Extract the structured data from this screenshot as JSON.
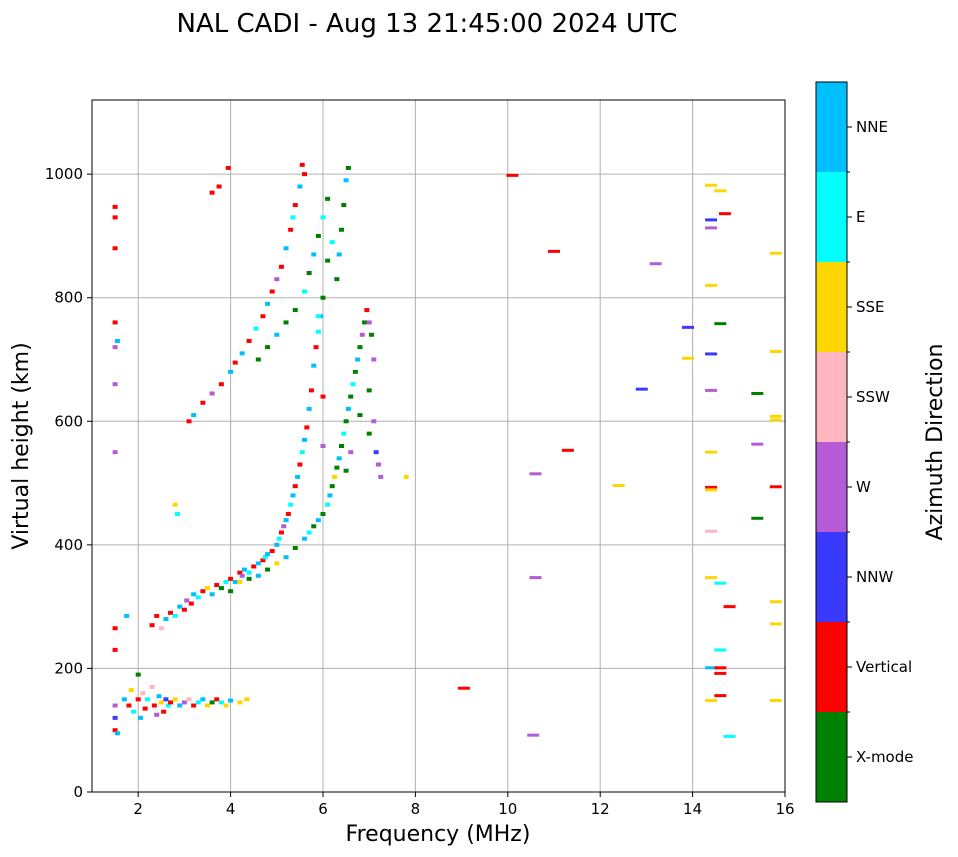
{
  "chart_data": {
    "type": "scatter",
    "title": "NAL CADI - Aug 13 21:45:00 2024 UTC",
    "xlabel": "Frequency (MHz)",
    "ylabel": "Virtual height (km)",
    "xlim": [
      1,
      16
    ],
    "ylim": [
      0,
      1120
    ],
    "xticks": [
      "2",
      "4",
      "6",
      "8",
      "10",
      "12",
      "14",
      "16"
    ],
    "yticks": [
      "0",
      "200",
      "400",
      "600",
      "800",
      "1000"
    ],
    "grid": true,
    "colorbar": {
      "label": "Azimuth Direction",
      "categories": [
        {
          "name": "X-mode",
          "color": "#008000"
        },
        {
          "name": "Vertical",
          "color": "#ff0000"
        },
        {
          "name": "NNW",
          "color": "#3a3aff"
        },
        {
          "name": "W",
          "color": "#b65bd6"
        },
        {
          "name": "SSW",
          "color": "#ffb6c1"
        },
        {
          "name": "SSE",
          "color": "#ffd700"
        },
        {
          "name": "E",
          "color": "#00ffff"
        },
        {
          "name": "NNE",
          "color": "#00bfff"
        }
      ]
    },
    "points": [
      [
        1.5,
        100,
        "Vertical"
      ],
      [
        1.5,
        120,
        "NNW"
      ],
      [
        1.55,
        95,
        "NNE"
      ],
      [
        1.5,
        140,
        "W"
      ],
      [
        1.5,
        230,
        "Vertical"
      ],
      [
        1.5,
        265,
        "Vertical"
      ],
      [
        1.5,
        550,
        "W"
      ],
      [
        1.5,
        660,
        "W"
      ],
      [
        1.5,
        720,
        "W"
      ],
      [
        1.55,
        730,
        "NNE"
      ],
      [
        1.5,
        760,
        "Vertical"
      ],
      [
        1.5,
        880,
        "Vertical"
      ],
      [
        1.5,
        930,
        "Vertical"
      ],
      [
        1.5,
        947,
        "Vertical"
      ],
      [
        1.75,
        285,
        "NNE"
      ],
      [
        1.7,
        150,
        "NNE"
      ],
      [
        1.8,
        140,
        "Vertical"
      ],
      [
        1.85,
        165,
        "SSE"
      ],
      [
        1.9,
        130,
        "E"
      ],
      [
        2.0,
        190,
        "X-mode"
      ],
      [
        2.0,
        150,
        "Vertical"
      ],
      [
        2.05,
        120,
        "NNE"
      ],
      [
        2.1,
        160,
        "SSW"
      ],
      [
        2.15,
        135,
        "Vertical"
      ],
      [
        2.2,
        150,
        "E"
      ],
      [
        2.3,
        170,
        "SSW"
      ],
      [
        2.35,
        140,
        "Vertical"
      ],
      [
        2.4,
        125,
        "W"
      ],
      [
        2.45,
        155,
        "NNE"
      ],
      [
        2.5,
        145,
        "SSE"
      ],
      [
        2.55,
        130,
        "Vertical"
      ],
      [
        2.6,
        150,
        "NNW"
      ],
      [
        2.65,
        140,
        "E"
      ],
      [
        2.7,
        145,
        "Vertical"
      ],
      [
        2.8,
        150,
        "SSE"
      ],
      [
        2.9,
        140,
        "NNE"
      ],
      [
        3.0,
        145,
        "W"
      ],
      [
        3.1,
        150,
        "SSW"
      ],
      [
        3.2,
        140,
        "Vertical"
      ],
      [
        3.3,
        145,
        "E"
      ],
      [
        3.4,
        150,
        "NNE"
      ],
      [
        3.5,
        140,
        "SSE"
      ],
      [
        3.6,
        145,
        "X-mode"
      ],
      [
        3.7,
        150,
        "Vertical"
      ],
      [
        3.8,
        145,
        "E"
      ],
      [
        3.9,
        140,
        "SSE"
      ],
      [
        4.0,
        148,
        "NNE"
      ],
      [
        4.2,
        145,
        "SSE"
      ],
      [
        4.35,
        150,
        "SSE"
      ],
      [
        2.3,
        270,
        "Vertical"
      ],
      [
        2.4,
        285,
        "Vertical"
      ],
      [
        2.5,
        265,
        "SSW"
      ],
      [
        2.6,
        280,
        "NNE"
      ],
      [
        2.7,
        290,
        "Vertical"
      ],
      [
        2.8,
        285,
        "E"
      ],
      [
        2.9,
        300,
        "NNE"
      ],
      [
        3.0,
        295,
        "Vertical"
      ],
      [
        3.05,
        310,
        "W"
      ],
      [
        3.15,
        305,
        "Vertical"
      ],
      [
        3.2,
        320,
        "NNE"
      ],
      [
        3.3,
        315,
        "E"
      ],
      [
        3.4,
        325,
        "Vertical"
      ],
      [
        3.5,
        330,
        "SSE"
      ],
      [
        3.6,
        320,
        "NNE"
      ],
      [
        3.7,
        335,
        "Vertical"
      ],
      [
        3.8,
        330,
        "NNE"
      ],
      [
        3.9,
        340,
        "E"
      ],
      [
        4.0,
        345,
        "Vertical"
      ],
      [
        4.1,
        340,
        "NNE"
      ],
      [
        4.2,
        355,
        "Vertical"
      ],
      [
        4.25,
        350,
        "W"
      ],
      [
        4.3,
        360,
        "NNE"
      ],
      [
        4.4,
        355,
        "E"
      ],
      [
        4.5,
        365,
        "Vertical"
      ],
      [
        4.6,
        370,
        "NNE"
      ],
      [
        4.7,
        375,
        "Vertical"
      ],
      [
        4.75,
        380,
        "E"
      ],
      [
        4.8,
        385,
        "NNE"
      ],
      [
        4.9,
        390,
        "Vertical"
      ],
      [
        5.0,
        400,
        "NNE"
      ],
      [
        5.05,
        410,
        "E"
      ],
      [
        5.1,
        420,
        "Vertical"
      ],
      [
        5.15,
        430,
        "W"
      ],
      [
        5.2,
        440,
        "NNE"
      ],
      [
        5.25,
        450,
        "Vertical"
      ],
      [
        5.3,
        465,
        "E"
      ],
      [
        5.35,
        480,
        "NNE"
      ],
      [
        5.4,
        495,
        "Vertical"
      ],
      [
        5.45,
        510,
        "NNE"
      ],
      [
        5.5,
        530,
        "Vertical"
      ],
      [
        5.55,
        550,
        "E"
      ],
      [
        5.6,
        570,
        "NNE"
      ],
      [
        5.65,
        590,
        "Vertical"
      ],
      [
        5.7,
        620,
        "NNE"
      ],
      [
        5.75,
        650,
        "Vertical"
      ],
      [
        5.8,
        690,
        "NNE"
      ],
      [
        5.85,
        720,
        "Vertical"
      ],
      [
        5.9,
        745,
        "E"
      ],
      [
        5.95,
        770,
        "NNE"
      ],
      [
        6.0,
        640,
        "Vertical"
      ],
      [
        6.0,
        560,
        "W"
      ],
      [
        3.8,
        330,
        "X-mode"
      ],
      [
        4.0,
        325,
        "X-mode"
      ],
      [
        4.2,
        340,
        "SSE"
      ],
      [
        4.4,
        345,
        "X-mode"
      ],
      [
        4.6,
        350,
        "NNE"
      ],
      [
        4.8,
        360,
        "X-mode"
      ],
      [
        5.0,
        370,
        "SSE"
      ],
      [
        5.2,
        380,
        "NNE"
      ],
      [
        5.4,
        395,
        "X-mode"
      ],
      [
        5.6,
        410,
        "NNE"
      ],
      [
        5.7,
        420,
        "E"
      ],
      [
        5.8,
        430,
        "X-mode"
      ],
      [
        5.9,
        440,
        "NNE"
      ],
      [
        6.0,
        450,
        "X-mode"
      ],
      [
        6.1,
        465,
        "E"
      ],
      [
        6.15,
        480,
        "NNE"
      ],
      [
        6.2,
        495,
        "X-mode"
      ],
      [
        6.25,
        510,
        "SSE"
      ],
      [
        6.3,
        525,
        "X-mode"
      ],
      [
        6.35,
        540,
        "NNE"
      ],
      [
        6.4,
        560,
        "X-mode"
      ],
      [
        6.45,
        580,
        "E"
      ],
      [
        6.5,
        600,
        "X-mode"
      ],
      [
        6.55,
        620,
        "NNE"
      ],
      [
        6.6,
        640,
        "X-mode"
      ],
      [
        6.65,
        660,
        "E"
      ],
      [
        6.7,
        680,
        "X-mode"
      ],
      [
        6.75,
        700,
        "NNE"
      ],
      [
        6.8,
        720,
        "X-mode"
      ],
      [
        6.85,
        740,
        "W"
      ],
      [
        6.9,
        760,
        "X-mode"
      ],
      [
        6.95,
        780,
        "Vertical"
      ],
      [
        7.0,
        760,
        "W"
      ],
      [
        7.05,
        740,
        "X-mode"
      ],
      [
        7.1,
        700,
        "W"
      ],
      [
        7.0,
        650,
        "X-mode"
      ],
      [
        7.1,
        600,
        "W"
      ],
      [
        7.15,
        550,
        "NNW"
      ],
      [
        7.2,
        530,
        "W"
      ],
      [
        7.25,
        510,
        "W"
      ],
      [
        6.5,
        520,
        "X-mode"
      ],
      [
        6.6,
        550,
        "W"
      ],
      [
        7.0,
        580,
        "X-mode"
      ],
      [
        6.8,
        610,
        "X-mode"
      ],
      [
        6.3,
        830,
        "X-mode"
      ],
      [
        6.35,
        870,
        "NNE"
      ],
      [
        6.4,
        910,
        "X-mode"
      ],
      [
        6.45,
        950,
        "X-mode"
      ],
      [
        6.5,
        990,
        "NNE"
      ],
      [
        6.55,
        1010,
        "X-mode"
      ],
      [
        6.2,
        890,
        "E"
      ],
      [
        6.1,
        860,
        "X-mode"
      ],
      [
        6.0,
        800,
        "X-mode"
      ],
      [
        5.9,
        770,
        "E"
      ],
      [
        7.8,
        510,
        "SSE"
      ],
      [
        3.1,
        600,
        "Vertical"
      ],
      [
        3.2,
        610,
        "NNE"
      ],
      [
        3.4,
        630,
        "Vertical"
      ],
      [
        3.6,
        645,
        "W"
      ],
      [
        3.8,
        660,
        "Vertical"
      ],
      [
        4.0,
        680,
        "NNE"
      ],
      [
        4.1,
        695,
        "Vertical"
      ],
      [
        4.25,
        710,
        "NNE"
      ],
      [
        4.4,
        730,
        "Vertical"
      ],
      [
        4.55,
        750,
        "E"
      ],
      [
        4.7,
        770,
        "Vertical"
      ],
      [
        4.8,
        790,
        "NNE"
      ],
      [
        4.9,
        810,
        "Vertical"
      ],
      [
        5.0,
        830,
        "W"
      ],
      [
        5.1,
        850,
        "Vertical"
      ],
      [
        5.2,
        880,
        "NNE"
      ],
      [
        5.3,
        910,
        "Vertical"
      ],
      [
        5.35,
        930,
        "E"
      ],
      [
        5.4,
        950,
        "Vertical"
      ],
      [
        5.5,
        980,
        "NNE"
      ],
      [
        5.6,
        1000,
        "Vertical"
      ],
      [
        5.55,
        1015,
        "Vertical"
      ],
      [
        4.6,
        700,
        "X-mode"
      ],
      [
        4.8,
        720,
        "X-mode"
      ],
      [
        5.0,
        740,
        "NNE"
      ],
      [
        5.2,
        760,
        "X-mode"
      ],
      [
        5.4,
        780,
        "X-mode"
      ],
      [
        5.6,
        810,
        "E"
      ],
      [
        5.7,
        840,
        "X-mode"
      ],
      [
        5.8,
        870,
        "NNE"
      ],
      [
        5.9,
        900,
        "X-mode"
      ],
      [
        6.0,
        930,
        "E"
      ],
      [
        6.1,
        960,
        "X-mode"
      ],
      [
        2.8,
        465,
        "SSE"
      ],
      [
        2.85,
        450,
        "E"
      ],
      [
        3.6,
        970,
        "Vertical"
      ],
      [
        3.75,
        980,
        "Vertical"
      ],
      [
        3.95,
        1010,
        "Vertical"
      ],
      [
        10.1,
        998,
        "Vertical"
      ],
      [
        11.0,
        875,
        "Vertical"
      ],
      [
        13.2,
        855,
        "W"
      ],
      [
        13.9,
        752,
        "NNW"
      ],
      [
        13.9,
        702,
        "SSE"
      ],
      [
        12.9,
        652,
        "NNW"
      ],
      [
        11.3,
        553,
        "Vertical"
      ],
      [
        10.6,
        515,
        "W"
      ],
      [
        12.4,
        496,
        "SSE"
      ],
      [
        10.6,
        347,
        "W"
      ],
      [
        9.05,
        168,
        "Vertical"
      ],
      [
        10.55,
        92,
        "W"
      ],
      [
        14.4,
        982,
        "SSE"
      ],
      [
        14.6,
        973,
        "SSE"
      ],
      [
        14.7,
        936,
        "Vertical"
      ],
      [
        14.4,
        926,
        "NNW"
      ],
      [
        14.4,
        913,
        "W"
      ],
      [
        14.4,
        820,
        "SSE"
      ],
      [
        14.6,
        758,
        "X-mode"
      ],
      [
        14.4,
        709,
        "NNW"
      ],
      [
        14.4,
        650,
        "W"
      ],
      [
        14.4,
        550,
        "SSE"
      ],
      [
        14.4,
        493,
        "Vertical"
      ],
      [
        14.4,
        489,
        "SSE"
      ],
      [
        14.4,
        422,
        "SSW"
      ],
      [
        14.4,
        347,
        "SSE"
      ],
      [
        14.6,
        338,
        "E"
      ],
      [
        14.8,
        300,
        "Vertical"
      ],
      [
        14.6,
        230,
        "E"
      ],
      [
        14.4,
        201,
        "NNE"
      ],
      [
        14.6,
        201,
        "Vertical"
      ],
      [
        14.6,
        192,
        "Vertical"
      ],
      [
        14.6,
        156,
        "Vertical"
      ],
      [
        14.4,
        148,
        "SSE"
      ],
      [
        14.8,
        90,
        "E"
      ],
      [
        15.4,
        645,
        "X-mode"
      ],
      [
        15.4,
        563,
        "W"
      ],
      [
        15.4,
        443,
        "X-mode"
      ],
      [
        15.8,
        872,
        "SSE"
      ],
      [
        15.8,
        713,
        "SSE"
      ],
      [
        15.8,
        608,
        "SSE"
      ],
      [
        15.8,
        602,
        "SSE"
      ],
      [
        15.8,
        494,
        "Vertical"
      ],
      [
        15.8,
        308,
        "SSE"
      ],
      [
        15.8,
        272,
        "SSE"
      ],
      [
        15.8,
        148,
        "SSE"
      ]
    ]
  }
}
